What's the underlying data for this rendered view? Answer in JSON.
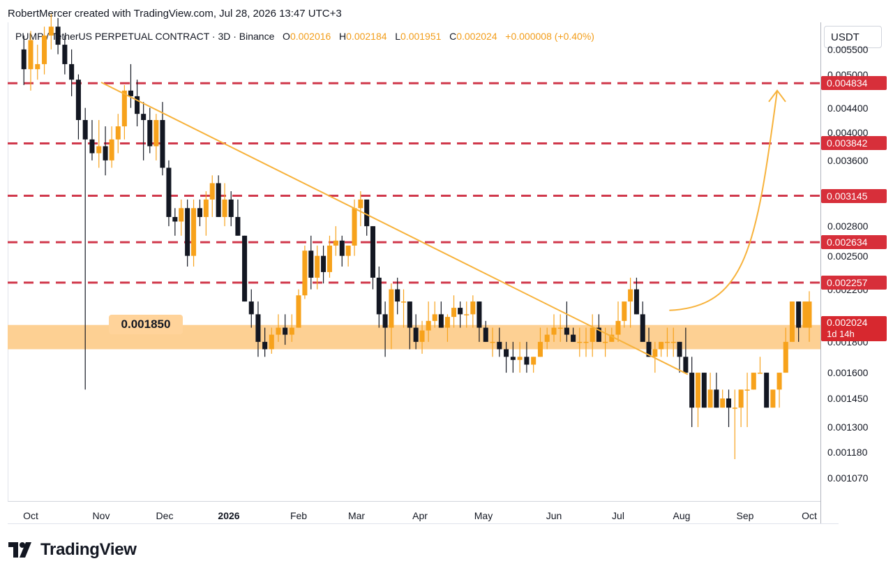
{
  "header": {
    "attribution": "RobertMercer created with TradingView.com, Jul 28, 2026 13:47 UTC+3"
  },
  "symbol": {
    "name": "PUMP / TetherUS PERPETUAL CONTRACT · 3D · Binance",
    "o_label": "O",
    "o_value": "0.002016",
    "h_label": "H",
    "h_value": "0.002184",
    "l_label": "L",
    "l_value": "0.001951",
    "c_label": "C",
    "c_value": "0.002024",
    "change": "+0.000008 (+0.40%)"
  },
  "currency": "USDT",
  "price_axis": [
    {
      "text": "0.005500",
      "value": 0.0055
    },
    {
      "text": "0.005000",
      "value": 0.005
    },
    {
      "text": "0.004400",
      "value": 0.0044
    },
    {
      "text": "0.004000",
      "value": 0.004
    },
    {
      "text": "0.003600",
      "value": 0.0036
    },
    {
      "text": "0.002800",
      "value": 0.0028
    },
    {
      "text": "0.002500",
      "value": 0.0025
    },
    {
      "text": "0.002200",
      "value": 0.0022
    },
    {
      "text": "0.001800",
      "value": 0.0018
    },
    {
      "text": "0.001600",
      "value": 0.0016
    },
    {
      "text": "0.001450",
      "value": 0.00145
    },
    {
      "text": "0.001300",
      "value": 0.0013
    },
    {
      "text": "0.001180",
      "value": 0.00118
    },
    {
      "text": "0.001070",
      "value": 0.00107
    }
  ],
  "resistance_tags": [
    "0.004834",
    "0.003842",
    "0.003145",
    "0.002634",
    "0.002257"
  ],
  "current_price": {
    "price": "0.002024",
    "countdown": "1d 14h"
  },
  "time_axis": [
    "Oct",
    "Nov",
    "Dec",
    "2026",
    "Feb",
    "Mar",
    "Apr",
    "May",
    "Jun",
    "Jul",
    "Aug",
    "Sep",
    "Oct"
  ],
  "support_callout": "0.001850",
  "logo_text": "TradingView",
  "colors": {
    "bull": "#f7a21b",
    "bear": "#131722",
    "resistance": "#d0384b",
    "support_zone": "#fdd093",
    "trendline": "#f7b23b",
    "price_tag": "#d72f3a"
  },
  "chart_data": {
    "type": "candlestick",
    "x": [
      "2025-10-01",
      "2026-10-01"
    ],
    "y_scale": "log",
    "ylim": [
      0.00098,
      0.0061
    ],
    "resistance_levels": [
      0.004834,
      0.003842,
      0.003145,
      0.002634,
      0.002257
    ],
    "support_zone": [
      0.00175,
      0.00192
    ],
    "support_label": 0.00185,
    "trendline": {
      "from": {
        "date": "2025-11-01",
        "price": 0.00485
      },
      "to": {
        "date": "2026-08-04",
        "price": 0.00159
      }
    },
    "projection": {
      "from": {
        "date": "2026-07-26",
        "price": 0.00203
      },
      "to": {
        "date": "2026-09-16",
        "price": 0.0047
      }
    },
    "candles": [
      [
        0.0055,
        0.0058,
        0.0048,
        0.0051
      ],
      [
        0.0051,
        0.0059,
        0.0047,
        0.0057
      ],
      [
        0.0051,
        0.0056,
        0.0049,
        0.0052
      ],
      [
        0.0052,
        0.006,
        0.005,
        0.0058
      ],
      [
        0.0058,
        0.0063,
        0.0055,
        0.006
      ],
      [
        0.006,
        0.0062,
        0.0054,
        0.0056
      ],
      [
        0.0056,
        0.0058,
        0.005,
        0.0052
      ],
      [
        0.0052,
        0.0055,
        0.0046,
        0.0049
      ],
      [
        0.0049,
        0.005,
        0.0039,
        0.0042
      ],
      [
        0.0042,
        0.0044,
        0.0015,
        0.0039
      ],
      [
        0.0039,
        0.0042,
        0.0036,
        0.0037
      ],
      [
        0.0037,
        0.0042,
        0.0035,
        0.0038
      ],
      [
        0.0038,
        0.0041,
        0.0034,
        0.0036
      ],
      [
        0.0036,
        0.0041,
        0.0035,
        0.0039
      ],
      [
        0.0039,
        0.0043,
        0.0037,
        0.0041
      ],
      [
        0.0041,
        0.0048,
        0.0039,
        0.0047
      ],
      [
        0.0047,
        0.0052,
        0.0044,
        0.0046
      ],
      [
        0.0046,
        0.0049,
        0.0041,
        0.0043
      ],
      [
        0.0043,
        0.0045,
        0.0036,
        0.0042
      ],
      [
        0.0042,
        0.0044,
        0.0037,
        0.0038
      ],
      [
        0.0038,
        0.0043,
        0.0036,
        0.0042
      ],
      [
        0.0042,
        0.0045,
        0.0034,
        0.0035
      ],
      [
        0.0035,
        0.0036,
        0.0028,
        0.0029
      ],
      [
        0.0029,
        0.003,
        0.0027,
        0.00285
      ],
      [
        0.00285,
        0.0031,
        0.0027,
        0.003
      ],
      [
        0.003,
        0.0031,
        0.0024,
        0.0025
      ],
      [
        0.0025,
        0.0031,
        0.0024,
        0.003
      ],
      [
        0.003,
        0.0031,
        0.0028,
        0.0029
      ],
      [
        0.0029,
        0.0032,
        0.0027,
        0.0031
      ],
      [
        0.0031,
        0.0034,
        0.0029,
        0.0033
      ],
      [
        0.0033,
        0.0034,
        0.0029,
        0.0029
      ],
      [
        0.0029,
        0.0033,
        0.0028,
        0.0031
      ],
      [
        0.0031,
        0.0032,
        0.0028,
        0.0029
      ],
      [
        0.0029,
        0.0031,
        0.0027,
        0.0027
      ],
      [
        0.0027,
        0.0027,
        0.0021,
        0.0021
      ],
      [
        0.0021,
        0.0022,
        0.0019,
        0.002
      ],
      [
        0.002,
        0.0021,
        0.0017,
        0.0018
      ],
      [
        0.0018,
        0.0019,
        0.0017,
        0.00175
      ],
      [
        0.00175,
        0.0019,
        0.00172,
        0.00185
      ],
      [
        0.00185,
        0.002,
        0.0018,
        0.0019
      ],
      [
        0.0019,
        0.002,
        0.00178,
        0.00185
      ],
      [
        0.00185,
        0.002,
        0.0018,
        0.0019
      ],
      [
        0.0019,
        0.0022,
        0.0019,
        0.00215
      ],
      [
        0.00215,
        0.0026,
        0.00212,
        0.00255
      ],
      [
        0.00255,
        0.0027,
        0.0022,
        0.0023
      ],
      [
        0.0023,
        0.0026,
        0.0022,
        0.0025
      ],
      [
        0.0025,
        0.0026,
        0.00225,
        0.00235
      ],
      [
        0.00235,
        0.0027,
        0.0023,
        0.0026
      ],
      [
        0.0026,
        0.0028,
        0.0025,
        0.00265
      ],
      [
        0.00265,
        0.0027,
        0.0024,
        0.0025
      ],
      [
        0.0025,
        0.0026,
        0.0024,
        0.0026
      ],
      [
        0.0026,
        0.0031,
        0.0025,
        0.003
      ],
      [
        0.003,
        0.0032,
        0.0028,
        0.0031
      ],
      [
        0.0031,
        0.0031,
        0.0027,
        0.0028
      ],
      [
        0.0028,
        0.0028,
        0.0022,
        0.0023
      ],
      [
        0.0023,
        0.0024,
        0.0019,
        0.002
      ],
      [
        0.002,
        0.0021,
        0.0017,
        0.0019
      ],
      [
        0.0019,
        0.00225,
        0.00175,
        0.0022
      ],
      [
        0.0022,
        0.0023,
        0.002,
        0.0021
      ],
      [
        0.0021,
        0.0022,
        0.0019,
        0.0021
      ],
      [
        0.0021,
        0.0021,
        0.00175,
        0.0019
      ],
      [
        0.0019,
        0.002,
        0.00175,
        0.0018
      ],
      [
        0.0018,
        0.00195,
        0.00172,
        0.00188
      ],
      [
        0.00188,
        0.0021,
        0.0018,
        0.00195
      ],
      [
        0.00195,
        0.0021,
        0.0019,
        0.002
      ],
      [
        0.002,
        0.0021,
        0.0019,
        0.0019
      ],
      [
        0.0019,
        0.002,
        0.0018,
        0.00198
      ],
      [
        0.00198,
        0.00215,
        0.0019,
        0.00205
      ],
      [
        0.00205,
        0.0021,
        0.0019,
        0.002
      ],
      [
        0.002,
        0.0021,
        0.0019,
        0.002
      ],
      [
        0.002,
        0.00215,
        0.0019,
        0.0021
      ],
      [
        0.0021,
        0.0021,
        0.0018,
        0.0019
      ],
      [
        0.0019,
        0.00195,
        0.0018,
        0.0018
      ],
      [
        0.0018,
        0.0019,
        0.0017,
        0.0018
      ],
      [
        0.0018,
        0.0019,
        0.0017,
        0.00175
      ],
      [
        0.00175,
        0.0018,
        0.0016,
        0.0017
      ],
      [
        0.0017,
        0.0018,
        0.0016,
        0.00168
      ],
      [
        0.00168,
        0.0018,
        0.0016,
        0.0017
      ],
      [
        0.0017,
        0.0018,
        0.0016,
        0.00165
      ],
      [
        0.00165,
        0.0017,
        0.0016,
        0.0017
      ],
      [
        0.0017,
        0.0019,
        0.0017,
        0.0018
      ],
      [
        0.0018,
        0.0019,
        0.00175,
        0.00185
      ],
      [
        0.00185,
        0.002,
        0.0018,
        0.0019
      ],
      [
        0.0019,
        0.002,
        0.0018,
        0.0019
      ],
      [
        0.0019,
        0.0021,
        0.0018,
        0.00185
      ],
      [
        0.00185,
        0.0019,
        0.0018,
        0.0018
      ],
      [
        0.0018,
        0.0019,
        0.0017,
        0.0018
      ],
      [
        0.0018,
        0.0019,
        0.0017,
        0.0018
      ],
      [
        0.0018,
        0.002,
        0.0017,
        0.0019
      ],
      [
        0.0019,
        0.002,
        0.0018,
        0.0018
      ],
      [
        0.0018,
        0.0019,
        0.0017,
        0.0018
      ],
      [
        0.0018,
        0.0019,
        0.0018,
        0.00185
      ],
      [
        0.00185,
        0.0021,
        0.0018,
        0.00195
      ],
      [
        0.00195,
        0.0021,
        0.0019,
        0.0021
      ],
      [
        0.0021,
        0.0023,
        0.0019,
        0.0022
      ],
      [
        0.0022,
        0.0023,
        0.002,
        0.002
      ],
      [
        0.002,
        0.0021,
        0.0018,
        0.0018
      ],
      [
        0.0018,
        0.0019,
        0.0017,
        0.0017
      ],
      [
        0.0017,
        0.0018,
        0.0016,
        0.00175
      ],
      [
        0.00175,
        0.0018,
        0.0017,
        0.0018
      ],
      [
        0.0018,
        0.0019,
        0.0017,
        0.0018
      ],
      [
        0.0018,
        0.0019,
        0.0017,
        0.0018
      ],
      [
        0.0018,
        0.0018,
        0.0016,
        0.0017
      ],
      [
        0.0017,
        0.0019,
        0.0016,
        0.0016
      ],
      [
        0.0016,
        0.0017,
        0.0013,
        0.0014
      ],
      [
        0.0014,
        0.0016,
        0.0013,
        0.0016
      ],
      [
        0.0016,
        0.0016,
        0.0014,
        0.0014
      ],
      [
        0.0014,
        0.0016,
        0.0014,
        0.0015
      ],
      [
        0.0015,
        0.0016,
        0.0014,
        0.0014
      ],
      [
        0.0014,
        0.0015,
        0.0014,
        0.00145
      ],
      [
        0.00145,
        0.0015,
        0.0013,
        0.0014
      ],
      [
        0.0014,
        0.0015,
        0.00115,
        0.0014
      ],
      [
        0.0014,
        0.0015,
        0.0013,
        0.0015
      ],
      [
        0.0015,
        0.0016,
        0.0013,
        0.0015
      ],
      [
        0.0015,
        0.0016,
        0.0015,
        0.0016
      ],
      [
        0.0016,
        0.0017,
        0.0016,
        0.0016
      ],
      [
        0.0016,
        0.0016,
        0.0014,
        0.0014
      ],
      [
        0.0014,
        0.0015,
        0.0014,
        0.0015
      ],
      [
        0.0015,
        0.0016,
        0.0014,
        0.0016
      ],
      [
        0.0016,
        0.0019,
        0.0016,
        0.0018
      ],
      [
        0.0018,
        0.0021,
        0.0018,
        0.0021
      ],
      [
        0.0021,
        0.0021,
        0.0018,
        0.0019
      ],
      [
        0.0019,
        0.0021,
        0.0019,
        0.0021
      ],
      [
        0.0019,
        0.0021,
        0.0018,
        0.0021
      ],
      [
        0.002016,
        0.002184,
        0.001951,
        0.002024
      ]
    ],
    "candle_window": {
      "first": "2025-09-28",
      "last": "2026-07-26",
      "interval_days": 3
    }
  }
}
